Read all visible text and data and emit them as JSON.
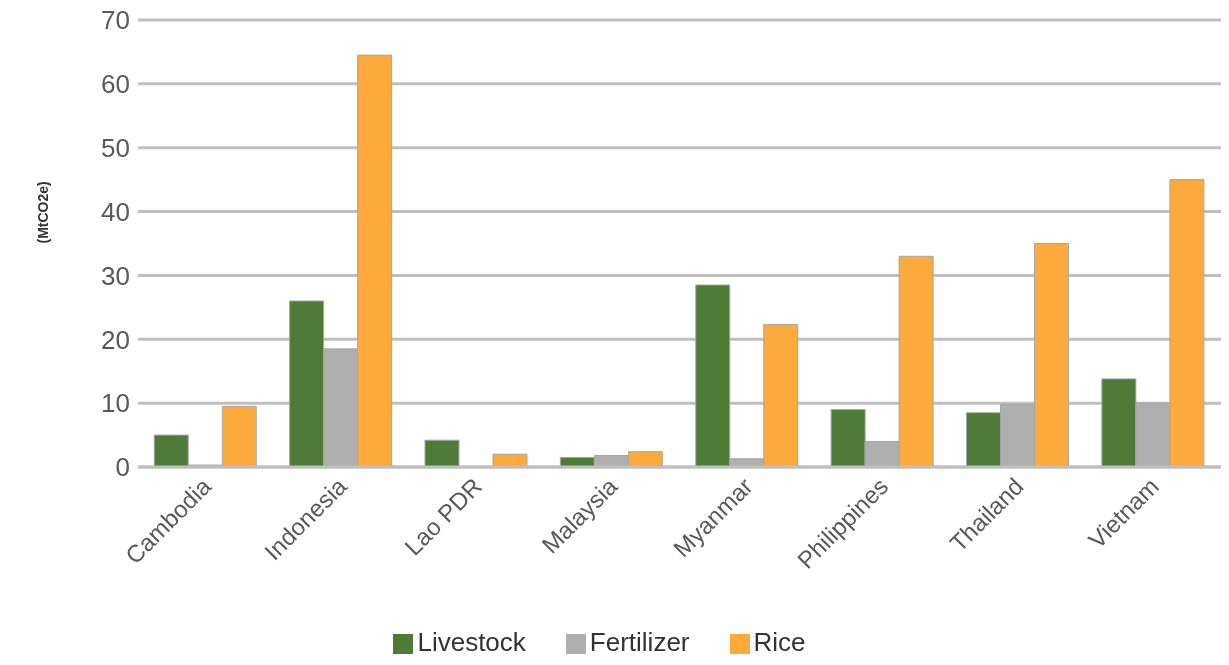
{
  "chart_data": {
    "type": "bar",
    "ylabel": "(MtCO2e)",
    "categories": [
      "Cambodia",
      "Indonesia",
      "Lao PDR",
      "Malaysia",
      "Myanmar",
      "Philippines",
      "Thailand",
      "Vietnam"
    ],
    "series": [
      {
        "name": "Livestock",
        "color": "#4e7c38",
        "values": [
          5,
          26,
          4.2,
          1.5,
          28.5,
          9,
          8.5,
          13.8
        ]
      },
      {
        "name": "Fertilizer",
        "color": "#afafaf",
        "values": [
          0.3,
          18.5,
          null,
          1.8,
          1.3,
          4,
          9.8,
          10
        ]
      },
      {
        "name": "Rice",
        "color": "#fdaa3c",
        "values": [
          9.5,
          64.5,
          2,
          2.4,
          22.3,
          33,
          35,
          45
        ]
      }
    ],
    "ylim": [
      0,
      70
    ],
    "yticks": [
      0,
      10,
      20,
      30,
      40,
      50,
      60,
      70
    ],
    "grid": "y",
    "legend": "bottom"
  }
}
